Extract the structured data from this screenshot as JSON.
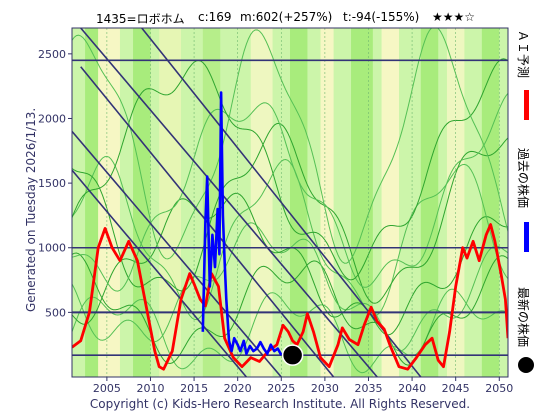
{
  "header": {
    "code_name": "1435=ロボホム",
    "c_value": "c:169",
    "m_value": "m:602(+257%)",
    "t_value": "t:-94(-155%)",
    "stars": "★★★☆"
  },
  "side_text": "Generated on Tuesday 2026/1/13.",
  "footer": "Copyright (c) Kids-Hero Research Institute. All Rights Reserved.",
  "legend": [
    {
      "label": "ＡＩ予測",
      "color": "#ff0000"
    },
    {
      "label": "過去の株価",
      "color": "#0000ff"
    },
    {
      "label": "最新の株価",
      "color": "#000000"
    }
  ],
  "chart_data": {
    "type": "line",
    "xlim": [
      2001,
      2051
    ],
    "ylim": [
      0,
      2700
    ],
    "x_ticks": [
      "2005",
      "2010",
      "2015",
      "2020",
      "2025",
      "2030",
      "2035",
      "2040",
      "2045",
      "2050"
    ],
    "y_ticks": [
      "500",
      "1000",
      "1500",
      "2000",
      "2500"
    ],
    "h_lines": [
      2450,
      1000,
      500,
      169
    ],
    "h_line_color": "#333377",
    "series": [
      {
        "name": "ＡＩ予測",
        "color": "#ff0000",
        "points": [
          [
            2001,
            230
          ],
          [
            2002,
            280
          ],
          [
            2003,
            500
          ],
          [
            2004,
            1000
          ],
          [
            2004.8,
            1150
          ],
          [
            2005.6,
            1000
          ],
          [
            2006.5,
            900
          ],
          [
            2007.5,
            1050
          ],
          [
            2008.5,
            900
          ],
          [
            2009.5,
            550
          ],
          [
            2010.5,
            200
          ],
          [
            2011,
            80
          ],
          [
            2011.5,
            60
          ],
          [
            2012.5,
            200
          ],
          [
            2013.5,
            600
          ],
          [
            2014.5,
            800
          ],
          [
            2015,
            720
          ],
          [
            2015.7,
            600
          ],
          [
            2016.3,
            550
          ],
          [
            2017,
            800
          ],
          [
            2017.8,
            700
          ],
          [
            2018.5,
            300
          ],
          [
            2019.5,
            150
          ],
          [
            2020.5,
            80
          ],
          [
            2021.5,
            150
          ],
          [
            2022.5,
            120
          ],
          [
            2023.5,
            200
          ],
          [
            2024.5,
            250
          ],
          [
            2025.2,
            400
          ],
          [
            2025.8,
            350
          ],
          [
            2026.3,
            280
          ],
          [
            2026.8,
            250
          ],
          [
            2027.5,
            350
          ],
          [
            2028,
            490
          ],
          [
            2028.7,
            350
          ],
          [
            2029.5,
            150
          ],
          [
            2030.5,
            80
          ],
          [
            2031.5,
            250
          ],
          [
            2032,
            380
          ],
          [
            2032.8,
            290
          ],
          [
            2033.8,
            250
          ],
          [
            2034.5,
            400
          ],
          [
            2035.3,
            540
          ],
          [
            2036,
            430
          ],
          [
            2036.8,
            370
          ],
          [
            2037.5,
            240
          ],
          [
            2038.5,
            80
          ],
          [
            2039.5,
            60
          ],
          [
            2040.5,
            150
          ],
          [
            2041.5,
            250
          ],
          [
            2042.3,
            300
          ],
          [
            2043,
            130
          ],
          [
            2043.6,
            80
          ],
          [
            2044.3,
            350
          ],
          [
            2045,
            700
          ],
          [
            2045.8,
            1000
          ],
          [
            2046.3,
            920
          ],
          [
            2047,
            1050
          ],
          [
            2047.7,
            900
          ],
          [
            2048.5,
            1100
          ],
          [
            2049,
            1180
          ],
          [
            2049.5,
            1050
          ],
          [
            2050.2,
            800
          ],
          [
            2050.7,
            600
          ],
          [
            2051,
            300
          ]
        ]
      },
      {
        "name": "過去の株価",
        "color": "#0000ff",
        "points": [
          [
            2016,
            350
          ],
          [
            2016.3,
            1200
          ],
          [
            2016.5,
            1550
          ],
          [
            2016.8,
            700
          ],
          [
            2017.1,
            1100
          ],
          [
            2017.4,
            850
          ],
          [
            2017.7,
            1300
          ],
          [
            2017.9,
            950
          ],
          [
            2018.1,
            2200
          ],
          [
            2018.3,
            1250
          ],
          [
            2018.5,
            900
          ],
          [
            2018.7,
            600
          ],
          [
            2019,
            280
          ],
          [
            2019.3,
            200
          ],
          [
            2019.6,
            300
          ],
          [
            2020,
            250
          ],
          [
            2020.3,
            200
          ],
          [
            2020.7,
            280
          ],
          [
            2021,
            180
          ],
          [
            2021.4,
            240
          ],
          [
            2021.8,
            200
          ],
          [
            2022.2,
            220
          ],
          [
            2022.6,
            270
          ],
          [
            2023,
            220
          ],
          [
            2023.4,
            180
          ],
          [
            2023.8,
            250
          ],
          [
            2024.2,
            200
          ],
          [
            2024.6,
            220
          ],
          [
            2025,
            170
          ]
        ]
      }
    ],
    "latest_point": {
      "x": 2026.3,
      "y": 169,
      "color": "#000000"
    }
  }
}
